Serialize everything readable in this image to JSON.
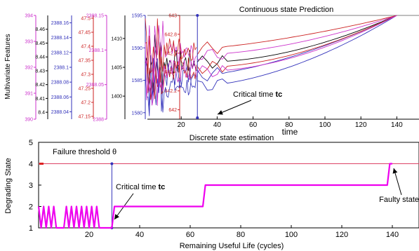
{
  "chart_data": [
    {
      "type": "line",
      "title": "Continuous state Prediction",
      "xlabel": "time",
      "ylabel": "Multivariate Features",
      "xlim": [
        0,
        150
      ],
      "x_ticks": [
        20,
        40,
        60,
        80,
        100,
        120,
        140
      ],
      "critical_time": {
        "x": 29,
        "label_prefix": "Critical time ",
        "label_bold": "tc"
      },
      "axes": [
        {
          "color": "#cc33cc",
          "range": [
            390,
            394
          ],
          "ticks": [
            "390",
            "391",
            "392",
            "393",
            "394"
          ]
        },
        {
          "color": "#000000",
          "range": [
            8.395,
            8.47
          ],
          "ticks": [
            "8.4",
            "8.41",
            "8.42",
            "8.43",
            "8.44",
            "8.45",
            "8.46"
          ]
        },
        {
          "color": "#3333bb",
          "range": [
            2388.03,
            2388.17
          ],
          "ticks": [
            "2388.04",
            "2388.06",
            "2388.08",
            "2388.1",
            "2388.12",
            "2388.14",
            "2388.16"
          ]
        },
        {
          "color": "#cc2222",
          "range": [
            47.14,
            47.51
          ],
          "ticks": [
            "47.15",
            "47.2",
            "47.25",
            "47.3",
            "47.35",
            "47.4",
            "47.45",
            "47.5"
          ]
        },
        {
          "color": "#cc33cc",
          "range": [
            2388.0,
            2388.15
          ],
          "ticks": [
            "2388",
            "2388.05",
            "2388.1",
            "2388.15"
          ]
        },
        {
          "color": "#000000",
          "range": [
            1396,
            1414
          ],
          "ticks": [
            "1400",
            "1405",
            "1410"
          ]
        },
        {
          "color": "#3333bb",
          "range": [
            1579,
            1595
          ],
          "ticks": [
            "1580",
            "1585",
            "1590",
            "1595"
          ]
        },
        {
          "color": "#cc2222",
          "range": [
            641.9,
            643.0
          ],
          "ticks": [
            "642",
            "642.2",
            "642.4",
            "642.6",
            "642.8",
            "643"
          ]
        }
      ],
      "series": [
        {
          "color": "#000000",
          "start": [
            29,
            0.55
          ],
          "end": [
            140,
            1.0
          ]
        },
        {
          "color": "#3333bb",
          "start": [
            29,
            0.32
          ],
          "end": [
            140,
            1.0
          ]
        },
        {
          "color": "#3333bb",
          "start": [
            29,
            0.42
          ],
          "end": [
            140,
            1.0
          ]
        },
        {
          "color": "#cc2222",
          "start": [
            29,
            0.5
          ],
          "end": [
            140,
            1.0
          ]
        },
        {
          "color": "#cc33cc",
          "start": [
            29,
            0.62
          ],
          "end": [
            140,
            1.0
          ]
        },
        {
          "color": "#cc2222",
          "start": [
            29,
            0.68
          ],
          "end": [
            140,
            1.0
          ]
        },
        {
          "color": "#cc33cc",
          "start": [
            29,
            0.46
          ],
          "end": [
            140,
            1.0
          ]
        }
      ]
    },
    {
      "type": "line",
      "title": "Discrete state estimation",
      "xlabel": "Remaining Useful Life (cycles)",
      "ylabel": "Degrading State",
      "xlim": [
        0,
        150
      ],
      "ylim": [
        1,
        5
      ],
      "x_ticks": [
        20,
        40,
        60,
        80,
        100,
        120,
        140
      ],
      "y_ticks": [
        1,
        2,
        3,
        4,
        5
      ],
      "threshold": {
        "y": 4,
        "label": "Failure threshold  θ"
      },
      "critical_time": {
        "x": 29,
        "label_prefix": "Critical time ",
        "label_bold": "tc"
      },
      "faulty_label": "Faulty state",
      "series": [
        {
          "color": "#ee00ee",
          "x": [
            0,
            1,
            2,
            3,
            4,
            5,
            6,
            7,
            8,
            9,
            10,
            11,
            12,
            13,
            14,
            15,
            16,
            17,
            18,
            19,
            20,
            21,
            22,
            23,
            24,
            25,
            26,
            27,
            28,
            29,
            30,
            65,
            66,
            138,
            139,
            140
          ],
          "y": [
            2,
            1,
            2,
            1,
            2,
            1,
            2,
            1,
            1,
            1,
            1,
            2,
            1,
            2,
            1,
            2,
            1,
            2,
            1,
            2,
            1,
            2,
            1,
            2,
            1,
            1,
            1,
            1,
            1,
            1,
            2,
            2,
            3,
            3,
            4,
            4
          ]
        }
      ]
    }
  ]
}
